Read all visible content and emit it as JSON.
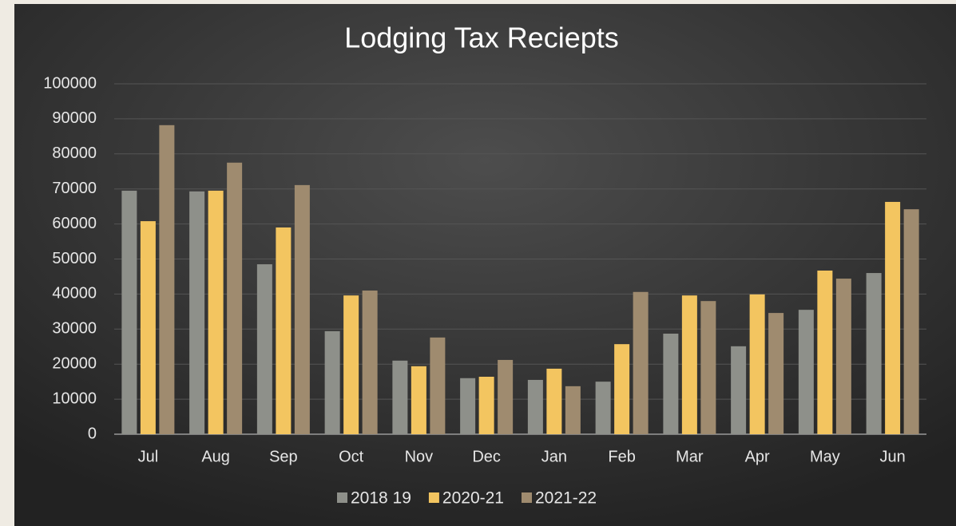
{
  "chart_data": {
    "type": "bar",
    "title": "Lodging Tax Reciepts",
    "categories": [
      "Jul",
      "Aug",
      "Sep",
      "Oct",
      "Nov",
      "Dec",
      "Jan",
      "Feb",
      "Mar",
      "Apr",
      "May",
      "Jun"
    ],
    "series": [
      {
        "name": "2018 19",
        "color": "#8e908a",
        "values": [
          69500,
          69300,
          48500,
          29400,
          21000,
          16000,
          15500,
          15000,
          28700,
          25100,
          35500,
          46000
        ]
      },
      {
        "name": "2020-21",
        "color": "#f3c560",
        "values": [
          60800,
          69500,
          59000,
          39600,
          19400,
          16400,
          18700,
          25700,
          39600,
          39900,
          46700,
          66300
        ]
      },
      {
        "name": "2021-22",
        "color": "#9f8b6f",
        "values": [
          88200,
          77500,
          71100,
          41000,
          27600,
          21200,
          13700,
          40600,
          38000,
          34600,
          44400,
          64200
        ]
      }
    ],
    "ylim": [
      0,
      100000
    ],
    "yticks": [
      0,
      10000,
      20000,
      30000,
      40000,
      50000,
      60000,
      70000,
      80000,
      90000,
      100000
    ],
    "grid": true
  }
}
